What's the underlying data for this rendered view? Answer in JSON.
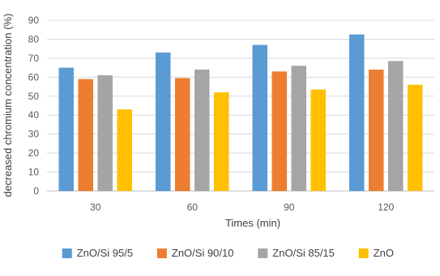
{
  "chart_data": {
    "type": "bar",
    "xlabel": "Times (min)",
    "ylabel": "decreased chromium concentration (%)",
    "categories": [
      "30",
      "60",
      "90",
      "120"
    ],
    "ylim": [
      0,
      90
    ],
    "yticks": [
      0,
      10,
      20,
      30,
      40,
      50,
      60,
      70,
      80,
      90
    ],
    "grid": true,
    "legend_position": "bottom",
    "series": [
      {
        "name": "ZnO/Si 95/5",
        "color": "#5B9BD5",
        "values": [
          65,
          73,
          77,
          82.5
        ]
      },
      {
        "name": "ZnO/Si 90/10",
        "color": "#ED7D31",
        "values": [
          59,
          59.5,
          63,
          64
        ]
      },
      {
        "name": "ZnO/Si 85/15",
        "color": "#A5A5A5",
        "values": [
          61,
          64,
          66,
          68.5
        ]
      },
      {
        "name": "ZnO",
        "color": "#FFC000",
        "values": [
          43,
          52,
          53.5,
          56
        ]
      }
    ]
  }
}
